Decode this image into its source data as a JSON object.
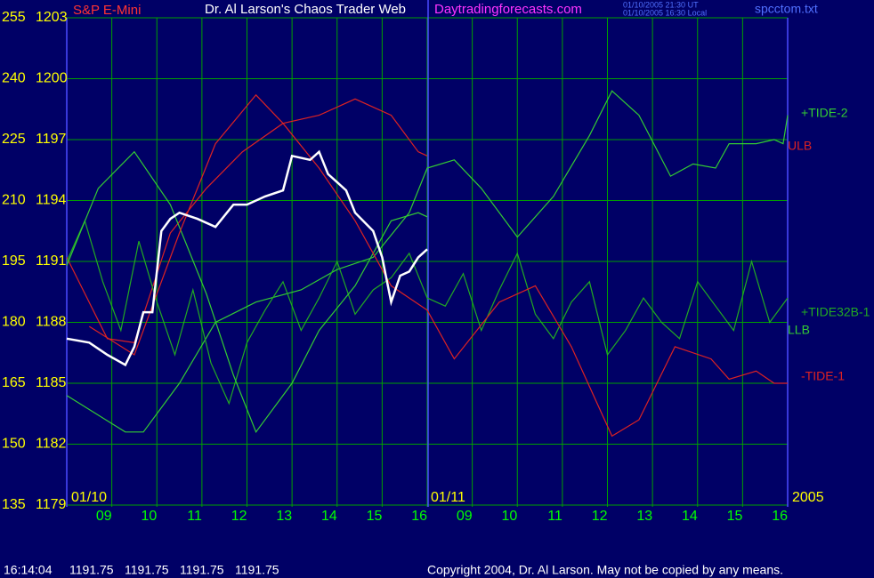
{
  "chart_data": {
    "type": "line",
    "title": "Dr. Al Larson's Chaos Trader Web",
    "subtitle": "Daytradingforecasts.com",
    "timestamps": [
      "01/10/2005 21:30 UT",
      "01/10/2005 16:30 Local"
    ],
    "file": "spcctom.txt",
    "annotations": [
      "01/10",
      "01/11",
      "2005"
    ],
    "xlim": [
      0,
      16
    ],
    "xticks": [
      {
        "value": 1,
        "label": "09"
      },
      {
        "value": 2,
        "label": "10"
      },
      {
        "value": 3,
        "label": "11"
      },
      {
        "value": 4,
        "label": "12"
      },
      {
        "value": 5,
        "label": "13"
      },
      {
        "value": 6,
        "label": "14"
      },
      {
        "value": 7,
        "label": "15"
      },
      {
        "value": 8,
        "label": "16"
      },
      {
        "value": 9,
        "label": "09"
      },
      {
        "value": 10,
        "label": "10"
      },
      {
        "value": 11,
        "label": "11"
      },
      {
        "value": 12,
        "label": "12"
      },
      {
        "value": 13,
        "label": "13"
      },
      {
        "value": 14,
        "label": "14"
      },
      {
        "value": 15,
        "label": "15"
      },
      {
        "value": 16,
        "label": "16"
      }
    ],
    "ylim": [
      135,
      255
    ],
    "yticks": [
      135,
      150,
      165,
      180,
      195,
      210,
      225,
      240,
      255
    ],
    "y2lim": [
      1179,
      1203
    ],
    "y2ticks": [
      1179,
      1182,
      1185,
      1188,
      1191,
      1194,
      1197,
      1200,
      1203
    ],
    "grid": true,
    "series": [
      {
        "name": "+TIDE-2",
        "color": "#33cc33",
        "x": [
          0,
          1.3,
          1.7,
          2.5,
          3.3,
          4.2,
          5.2,
          6.0,
          6.8,
          7.6,
          8.0,
          8.6,
          9.2,
          10.0,
          10.8,
          11.6,
          12.1,
          12.7,
          13.4,
          13.9,
          14.4,
          14.7,
          15.3,
          15.7,
          15.9,
          16
        ],
        "values": [
          162,
          153,
          153,
          165,
          180,
          185,
          188,
          193,
          196,
          207,
          218,
          220,
          213,
          201,
          211,
          226,
          237,
          231,
          216,
          219,
          218,
          224,
          224,
          225,
          224,
          231
        ]
      },
      {
        "name": "ULB",
        "color": "#dd2222",
        "x": [
          0,
          0.9,
          1.5,
          2.3,
          3.1,
          3.9,
          4.8,
          5.6,
          6.4,
          7.2,
          7.8,
          8.0
        ],
        "values": [
          196,
          176,
          175,
          202,
          213,
          222,
          229,
          231,
          235,
          231,
          222,
          221
        ]
      },
      {
        "name": "+TIDE32B-1",
        "color": "#22aa22",
        "x": [
          0,
          0.4,
          0.8,
          1.2,
          1.6,
          2,
          2.4,
          2.8,
          3.2,
          3.6,
          4,
          4.4,
          4.8,
          5.2,
          5.6,
          6,
          6.4,
          6.8,
          7.2,
          7.6,
          8,
          8.4,
          8.8,
          9.2,
          9.6,
          10,
          10.4,
          10.8,
          11.2,
          11.6,
          12,
          12.4,
          12.8,
          13.2,
          13.6,
          14,
          14.4,
          14.8,
          15.2,
          15.6,
          16
        ],
        "values": [
          195,
          205,
          190,
          178,
          200,
          185,
          172,
          188,
          170,
          160,
          175,
          183,
          190,
          178,
          186,
          195,
          182,
          188,
          191,
          197,
          186,
          184,
          192,
          178,
          188,
          197,
          182,
          176,
          185,
          190,
          172,
          178,
          186,
          180,
          176,
          190,
          184,
          178,
          195,
          180,
          186
        ]
      },
      {
        "name": "LLB",
        "color": "#33cc33",
        "x": [
          0,
          0.7,
          1.5,
          2.3,
          3.1,
          3.7,
          4.2,
          5.0,
          5.6,
          6.4,
          7.2,
          7.8,
          8.0
        ],
        "values": [
          194,
          213,
          222,
          209,
          187,
          167,
          153,
          165,
          178,
          189,
          205,
          207,
          206
        ]
      },
      {
        "name": "-TIDE-1",
        "color": "#dd2222",
        "x": [
          0.5,
          1.5,
          2.5,
          3.3,
          4.2,
          4.8,
          5.6,
          6.4,
          7.2,
          8.0,
          8.6,
          9.6,
          10.4,
          11.2,
          12.1,
          12.7,
          13.5,
          14.3,
          14.7,
          15.3,
          15.7,
          16
        ],
        "values": [
          179,
          172,
          202,
          224,
          236,
          229,
          218,
          205,
          189,
          183,
          171,
          185,
          189,
          174,
          152,
          156,
          174,
          171,
          166,
          168,
          165,
          165
        ]
      },
      {
        "name": "S&P E-Mini",
        "color": "#ffffff",
        "axis": "y2",
        "x": [
          0,
          0.5,
          0.9,
          1.3,
          1.5,
          1.7,
          1.9,
          2.1,
          2.3,
          2.5,
          2.9,
          3.3,
          3.7,
          4.0,
          4.4,
          4.8,
          5.0,
          5.4,
          5.6,
          5.8,
          6.0,
          6.2,
          6.4,
          6.8,
          7.0,
          7.2,
          7.4,
          7.6,
          7.8,
          8.0
        ],
        "values": [
          1187.2,
          1187.0,
          1186.4,
          1185.9,
          1186.8,
          1188.5,
          1188.5,
          1192.5,
          1193.1,
          1193.4,
          1193.1,
          1192.7,
          1193.8,
          1193.8,
          1194.2,
          1194.5,
          1196.2,
          1196.0,
          1196.4,
          1195.3,
          1194.9,
          1194.5,
          1193.4,
          1192.5,
          1191.2,
          1189.0,
          1190.3,
          1190.5,
          1191.2,
          1191.6
        ]
      }
    ],
    "status": {
      "time": "16:14:04",
      "quotes": [
        1191.75,
        1191.75,
        1191.75,
        1191.75
      ]
    },
    "copyright": "Copyright 2004, Dr. Al Larson. May not be copied by any means."
  }
}
